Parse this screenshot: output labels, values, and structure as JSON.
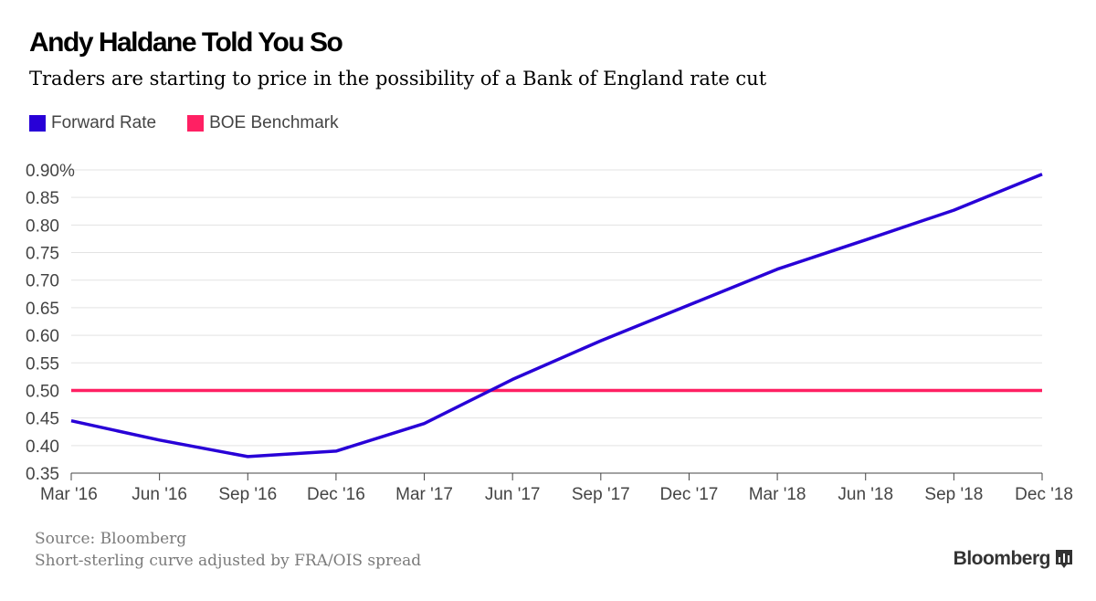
{
  "title": "Andy Haldane Told You So",
  "subtitle": "Traders are starting to price in the possibility of a Bank of England rate cut",
  "legend": [
    {
      "label": "Forward Rate",
      "color": "#2800d7"
    },
    {
      "label": "BOE Benchmark",
      "color": "#ff2063"
    }
  ],
  "footer": {
    "source": "Source: Bloomberg",
    "note": "Short-sterling curve adjusted by FRA/OIS spread"
  },
  "brand": "Bloomberg",
  "brand_icon": "bloomberg-chart-icon",
  "chart_data": {
    "type": "line",
    "x": [
      "Mar '16",
      "Jun '16",
      "Sep '16",
      "Dec '16",
      "Mar '17",
      "Jun '17",
      "Sep '17",
      "Dec '17",
      "Mar '18",
      "Jun '18",
      "Sep '18",
      "Dec '18"
    ],
    "series": [
      {
        "name": "Forward Rate",
        "color": "#2800d7",
        "values": [
          0.445,
          0.41,
          0.38,
          0.39,
          0.44,
          0.52,
          0.59,
          0.655,
          0.72,
          0.773,
          0.827,
          0.892
        ]
      },
      {
        "name": "BOE Benchmark",
        "color": "#ff2063",
        "values": [
          0.5,
          0.5,
          0.5,
          0.5,
          0.5,
          0.5,
          0.5,
          0.5,
          0.5,
          0.5,
          0.5,
          0.5
        ]
      }
    ],
    "ylim": [
      0.35,
      0.9
    ],
    "yticks": [
      "0.35",
      "0.40",
      "0.45",
      "0.50",
      "0.55",
      "0.60",
      "0.65",
      "0.70",
      "0.75",
      "0.80",
      "0.85",
      "0.90%"
    ],
    "xlabel": "",
    "ylabel": "",
    "grid": true,
    "legend_position": "top-left"
  }
}
